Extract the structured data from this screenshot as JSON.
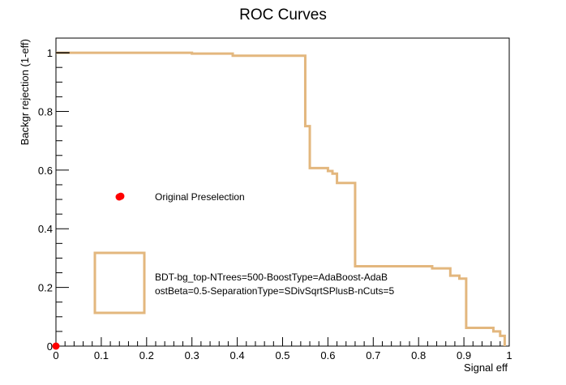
{
  "chart_data": {
    "type": "line",
    "title": "ROC Curves",
    "xlabel": "Signal eff",
    "ylabel": "Backgr rejection (1-eff)",
    "xlim": [
      0,
      1
    ],
    "ylim": [
      0,
      1.05
    ],
    "x_ticks": [
      "0",
      "0.1",
      "0.2",
      "0.3",
      "0.4",
      "0.5",
      "0.6",
      "0.7",
      "0.8",
      "0.9",
      "1"
    ],
    "y_ticks": [
      "0",
      "0.2",
      "0.4",
      "0.6",
      "0.8",
      "1"
    ],
    "grid": false,
    "legend_placement": "bottom-left",
    "series": [
      {
        "name": "BDT-bg_top-NTrees=500-BoostType=AdaBoost-AdaBoostBeta=0.5-SeparationType=SDivSqrtSPlusB-nCuts=5",
        "legend_lines": [
          "BDT-bg_top-NTrees=500-BoostType=AdaBoost-AdaB",
          "ostBeta=0.5-SeparationType=SDivSqrtSPlusB-nCuts=5"
        ],
        "color": "#e3b77e",
        "step": true,
        "x": [
          0.0,
          0.03,
          0.3,
          0.3,
          0.39,
          0.39,
          0.55,
          0.55,
          0.56,
          0.56,
          0.6,
          0.6,
          0.61,
          0.61,
          0.62,
          0.62,
          0.66,
          0.66,
          0.83,
          0.83,
          0.87,
          0.87,
          0.89,
          0.89,
          0.905,
          0.905,
          0.965,
          0.965,
          0.98,
          0.98,
          0.99,
          0.99
        ],
        "y": [
          1.0,
          1.0,
          1.0,
          0.997,
          0.997,
          0.99,
          0.99,
          0.75,
          0.75,
          0.607,
          0.607,
          0.597,
          0.597,
          0.588,
          0.588,
          0.556,
          0.556,
          0.272,
          0.272,
          0.265,
          0.265,
          0.24,
          0.24,
          0.23,
          0.23,
          0.062,
          0.062,
          0.05,
          0.05,
          0.035,
          0.035,
          0.0
        ]
      },
      {
        "name": "Original Preselection",
        "type": "scatter",
        "color": "#ff0000",
        "points": [
          {
            "x": 0.143,
            "y": 0.511
          },
          {
            "x": 0.0,
            "y": 0.0
          }
        ]
      }
    ]
  }
}
